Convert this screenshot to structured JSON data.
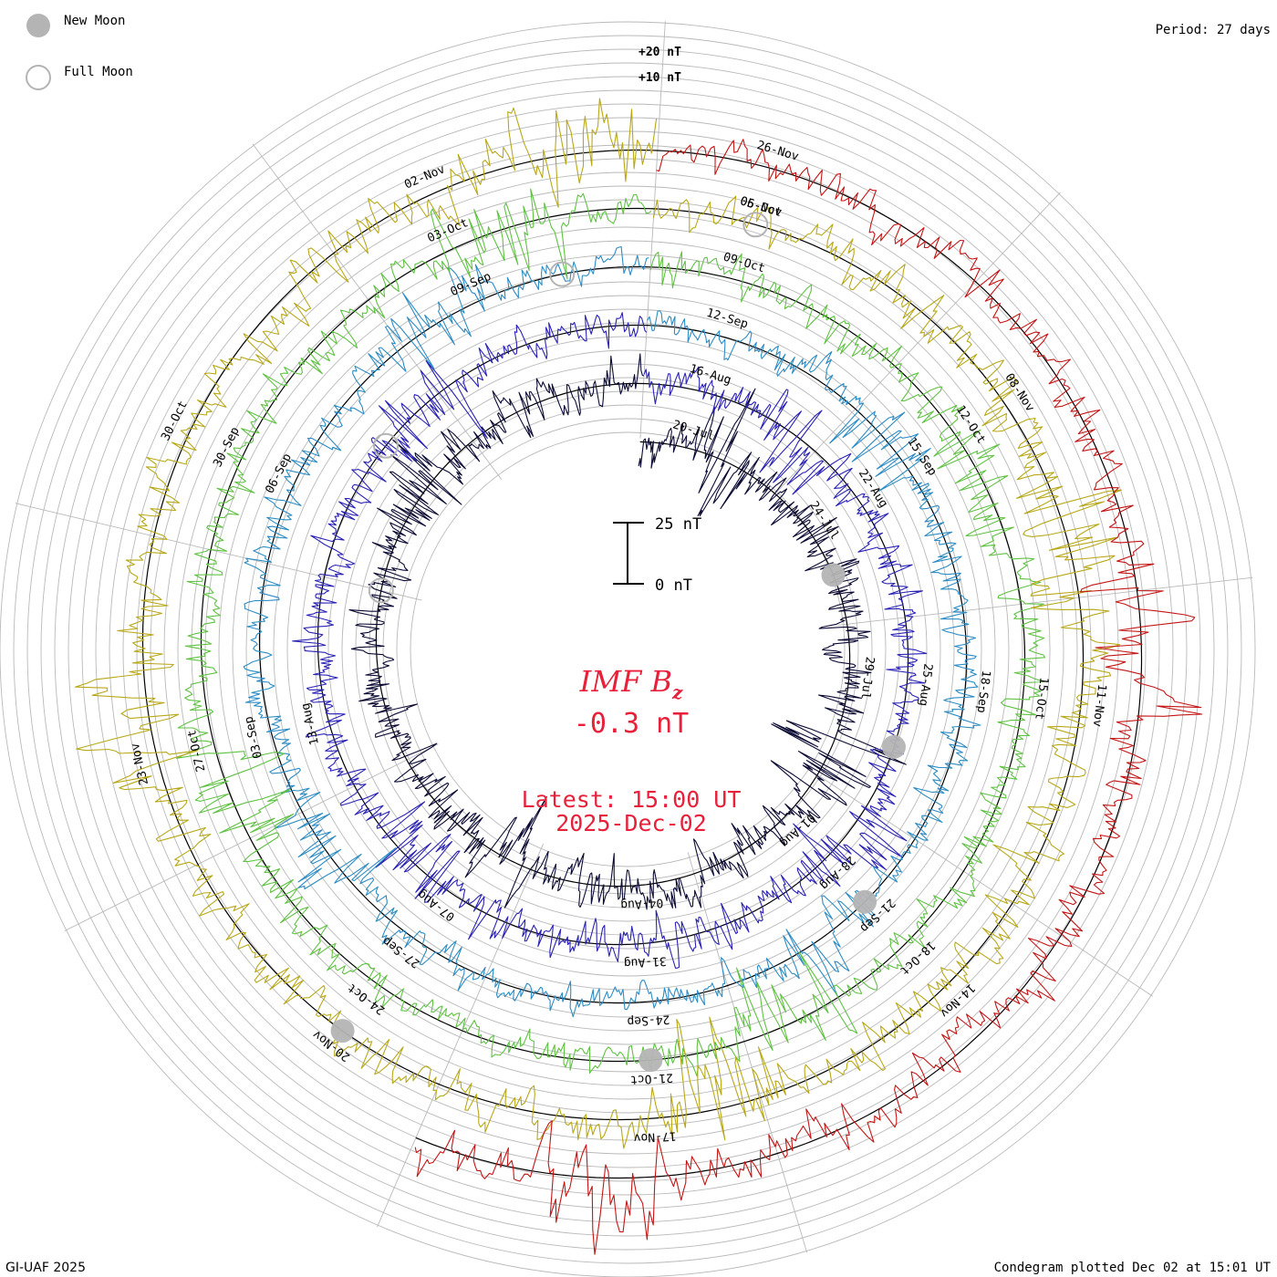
{
  "chart_data": {
    "type": "line",
    "subtype": "condegram-spiral",
    "title": "IMF Bz",
    "title_main": "IMF B",
    "title_sub": "z",
    "current_value": "-0.3 nT",
    "latest_label": "Latest: 15:00 UT",
    "latest_date": "2025-Dec-02",
    "period_label": "Period: 27 days",
    "credit": "GI-UAF 2025",
    "plotted_label": "Condegram plotted Dec 02 at 15:01 UT",
    "scale_bar": {
      "top_label": "25 nT",
      "bottom_label": "0 nT"
    },
    "ring_scale": {
      "outer_label": "+20 nT",
      "inner_label": "+10 nT"
    },
    "legend": [
      {
        "symbol": "filled-circle",
        "label": "New Moon"
      },
      {
        "symbol": "open-circle",
        "label": "Full Moon"
      }
    ],
    "units": "nT",
    "period_days": 27,
    "baseline_nT": 0,
    "cycles": [
      {
        "start": "2025-Jul-19",
        "color": "#0b0a33",
        "amplitude_nT": 11,
        "dates": [
          "20-Jul",
          "24-Jul",
          "29-Jul",
          "01-Aug",
          "04-Aug"
        ]
      },
      {
        "start": "2025-Aug-15",
        "color": "#2a22b5",
        "amplitude_nT": 9,
        "dates": [
          "16-Aug",
          "22-Aug",
          "25-Aug",
          "28-Aug",
          "31-Aug",
          "07-Aug",
          "13-Aug"
        ]
      },
      {
        "start": "2025-Sep-11",
        "color": "#2c8cc4",
        "amplitude_nT": 8,
        "dates": [
          "12-Sep",
          "15-Sep",
          "18-Sep",
          "21-Sep",
          "24-Sep",
          "27-Sep",
          "03-Sep",
          "06-Sep",
          "09-Sep"
        ]
      },
      {
        "start": "2025-Oct-08",
        "color": "#5fc242",
        "amplitude_nT": 9,
        "dates": [
          "09-Oct",
          "12-Oct",
          "15-Oct",
          "18-Oct",
          "21-Oct",
          "24-Oct",
          "27-Oct",
          "30-Sep",
          "03-Oct",
          "06-Oct"
        ]
      },
      {
        "start": "2025-Nov-04",
        "color": "#b8a818",
        "amplitude_nT": 12,
        "dates": [
          "05-Nov",
          "08-Nov",
          "11-Nov",
          "14-Nov",
          "17-Nov",
          "20-Nov",
          "23-Nov",
          "30-Oct",
          "02-Nov"
        ]
      },
      {
        "start": "2025-Nov-25",
        "color": "#c41515",
        "amplitude_nT": 10,
        "dates": [
          "26-Nov"
        ]
      }
    ],
    "moon_phases": [
      {
        "phase": "new",
        "date": "2025-Jul-24"
      },
      {
        "phase": "full",
        "date": "2025-Aug-09"
      },
      {
        "phase": "new",
        "date": "2025-Aug-23"
      },
      {
        "phase": "full",
        "date": "2025-Sep-07"
      },
      {
        "phase": "new",
        "date": "2025-Sep-21"
      },
      {
        "phase": "full",
        "date": "2025-Oct-07"
      },
      {
        "phase": "new",
        "date": "2025-Oct-21"
      },
      {
        "phase": "full",
        "date": "2025-Nov-05"
      },
      {
        "phase": "new",
        "date": "2025-Nov-20"
      }
    ]
  }
}
